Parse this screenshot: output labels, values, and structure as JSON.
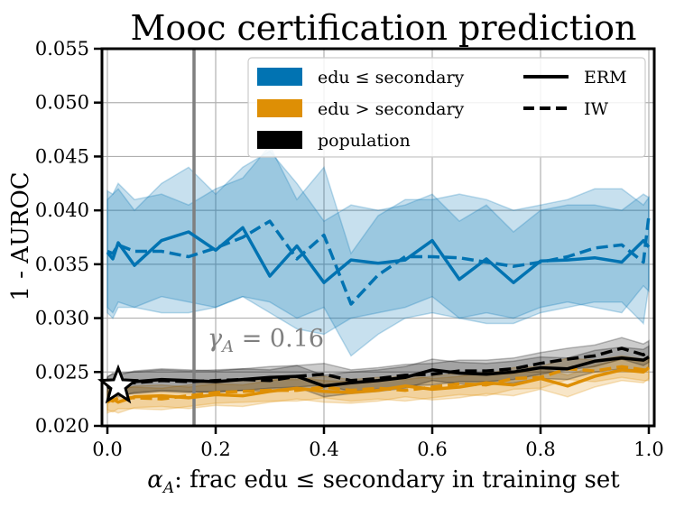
{
  "chart_data": {
    "type": "line",
    "title": "Mooc certification prediction",
    "xlabel": "α_A: frac edu ≤ secondary in training set",
    "xlabel_parts": {
      "alpha": "α",
      "sub": "A",
      "rest": ": frac edu ≤ secondary in training set"
    },
    "ylabel": "1 - AUROC",
    "xlim": [
      -0.01,
      1.01
    ],
    "ylim": [
      0.02,
      0.055
    ],
    "xticks": [
      0.0,
      0.2,
      0.4,
      0.6,
      0.8,
      1.0
    ],
    "xtick_labels": [
      "0.0",
      "0.2",
      "0.4",
      "0.6",
      "0.8",
      "1.0"
    ],
    "yticks": [
      0.02,
      0.025,
      0.03,
      0.035,
      0.04,
      0.045,
      0.05,
      0.055
    ],
    "ytick_labels": [
      "0.020",
      "0.025",
      "0.030",
      "0.035",
      "0.040",
      "0.045",
      "0.050",
      "0.055"
    ],
    "grid": true,
    "annotation": {
      "gamma_x": 0.16,
      "label_parts": {
        "gamma": "γ",
        "sub": "A",
        "rest": " = 0.16"
      }
    },
    "star_marker": {
      "x": 0.02,
      "y": 0.0237
    },
    "legend": {
      "placement": "top-right",
      "groups": [
        {
          "label": "edu ≤ secondary",
          "color": "#0173b2"
        },
        {
          "label": "edu > secondary",
          "color": "#de8f05"
        },
        {
          "label": "population",
          "color": "#000000"
        }
      ],
      "styles": [
        {
          "label": "ERM",
          "dash": "solid"
        },
        {
          "label": "IW",
          "dash": "dashed"
        }
      ]
    },
    "x": [
      0.0,
      0.01,
      0.02,
      0.05,
      0.1,
      0.15,
      0.2,
      0.25,
      0.3,
      0.35,
      0.4,
      0.45,
      0.5,
      0.55,
      0.6,
      0.65,
      0.7,
      0.75,
      0.8,
      0.85,
      0.9,
      0.95,
      0.99,
      1.0
    ],
    "series": [
      {
        "name": "edu ≤ secondary ERM",
        "group": "edu ≤ secondary",
        "color": "#0173b2",
        "dash": "solid",
        "values": [
          0.0361,
          0.0355,
          0.037,
          0.0349,
          0.0372,
          0.038,
          0.0363,
          0.0384,
          0.0339,
          0.0367,
          0.0333,
          0.0354,
          0.0351,
          0.0354,
          0.0372,
          0.0336,
          0.0355,
          0.0333,
          0.0353,
          0.0354,
          0.0356,
          0.0352,
          0.0372,
          0.0366
        ],
        "lower": [
          0.031,
          0.0305,
          0.0315,
          0.031,
          0.032,
          0.0315,
          0.031,
          0.032,
          0.0305,
          0.029,
          0.0285,
          0.03,
          0.0305,
          0.031,
          0.032,
          0.03,
          0.0305,
          0.03,
          0.031,
          0.0315,
          0.031,
          0.0305,
          0.033,
          0.0325
        ],
        "upper": [
          0.041,
          0.0415,
          0.042,
          0.04,
          0.0425,
          0.044,
          0.0415,
          0.044,
          0.0455,
          0.0425,
          0.039,
          0.0405,
          0.04,
          0.0405,
          0.0415,
          0.039,
          0.0405,
          0.038,
          0.04,
          0.0405,
          0.0405,
          0.04,
          0.0415,
          0.0412
        ]
      },
      {
        "name": "edu ≤ secondary IW",
        "group": "edu ≤ secondary",
        "color": "#0173b2",
        "dash": "dashed",
        "values": [
          0.0362,
          0.036,
          0.0368,
          0.0362,
          0.0362,
          0.0357,
          0.0365,
          0.0375,
          0.039,
          0.0355,
          0.0377,
          0.0313,
          0.034,
          0.0357,
          0.0357,
          0.0356,
          0.0352,
          0.0348,
          0.0352,
          0.0357,
          0.0365,
          0.0368,
          0.0352,
          0.0395
        ],
        "lower": [
          0.0305,
          0.03,
          0.031,
          0.031,
          0.0305,
          0.0305,
          0.031,
          0.032,
          0.0315,
          0.03,
          0.031,
          0.0265,
          0.0285,
          0.03,
          0.0305,
          0.03,
          0.0295,
          0.0295,
          0.0305,
          0.031,
          0.0315,
          0.0315,
          0.0295,
          0.033
        ],
        "upper": [
          0.0418,
          0.0415,
          0.0425,
          0.041,
          0.0415,
          0.0405,
          0.042,
          0.043,
          0.046,
          0.041,
          0.044,
          0.036,
          0.0395,
          0.041,
          0.041,
          0.0415,
          0.041,
          0.04,
          0.0405,
          0.041,
          0.042,
          0.042,
          0.0405,
          0.0412
        ]
      },
      {
        "name": "edu > secondary ERM",
        "group": "edu > secondary",
        "color": "#de8f05",
        "dash": "solid",
        "values": [
          0.0222,
          0.0225,
          0.0222,
          0.0227,
          0.0228,
          0.0226,
          0.0229,
          0.0228,
          0.0232,
          0.0235,
          0.0232,
          0.0231,
          0.0233,
          0.0237,
          0.0234,
          0.0236,
          0.024,
          0.0238,
          0.0244,
          0.0237,
          0.0246,
          0.0252,
          0.025,
          0.0254
        ],
        "lower": [
          0.0212,
          0.0214,
          0.0212,
          0.0217,
          0.0218,
          0.0216,
          0.0219,
          0.0218,
          0.0222,
          0.0225,
          0.0222,
          0.0221,
          0.0223,
          0.0227,
          0.0224,
          0.0226,
          0.023,
          0.0228,
          0.0234,
          0.0227,
          0.0236,
          0.0242,
          0.024,
          0.0244
        ],
        "upper": [
          0.0232,
          0.0236,
          0.0232,
          0.0237,
          0.0238,
          0.0236,
          0.0239,
          0.0238,
          0.0242,
          0.0245,
          0.0242,
          0.0241,
          0.0243,
          0.0247,
          0.0244,
          0.0246,
          0.025,
          0.0248,
          0.0254,
          0.0247,
          0.0256,
          0.0262,
          0.026,
          0.0264
        ]
      },
      {
        "name": "edu > secondary IW",
        "group": "edu > secondary",
        "color": "#de8f05",
        "dash": "dashed",
        "values": [
          0.0225,
          0.0223,
          0.0226,
          0.0226,
          0.0225,
          0.0228,
          0.0231,
          0.0232,
          0.0233,
          0.0233,
          0.0236,
          0.0233,
          0.0235,
          0.0233,
          0.0236,
          0.0239,
          0.0238,
          0.0244,
          0.0245,
          0.0253,
          0.0251,
          0.0255,
          0.0252,
          0.0252
        ],
        "lower": [
          0.0215,
          0.0213,
          0.0216,
          0.0216,
          0.0215,
          0.0218,
          0.0221,
          0.0222,
          0.0223,
          0.0223,
          0.0226,
          0.0223,
          0.0225,
          0.0223,
          0.0226,
          0.0229,
          0.0228,
          0.0234,
          0.0235,
          0.0243,
          0.0241,
          0.0245,
          0.0242,
          0.0242
        ],
        "upper": [
          0.0235,
          0.0233,
          0.0236,
          0.0236,
          0.0235,
          0.0238,
          0.0241,
          0.0242,
          0.0243,
          0.0243,
          0.0246,
          0.0243,
          0.0245,
          0.0243,
          0.0246,
          0.0249,
          0.0248,
          0.0254,
          0.0255,
          0.0263,
          0.0261,
          0.0265,
          0.0262,
          0.0262
        ]
      },
      {
        "name": "population ERM",
        "group": "population",
        "color": "#000000",
        "dash": "solid",
        "values": [
          0.0235,
          0.0239,
          0.0237,
          0.0241,
          0.0243,
          0.0242,
          0.0241,
          0.0243,
          0.0245,
          0.0246,
          0.0237,
          0.024,
          0.0242,
          0.0245,
          0.0252,
          0.0249,
          0.0248,
          0.025,
          0.0254,
          0.0253,
          0.026,
          0.0263,
          0.0261,
          0.0264
        ],
        "lower": [
          0.0225,
          0.0229,
          0.0227,
          0.0231,
          0.0233,
          0.0232,
          0.0231,
          0.0233,
          0.0235,
          0.0236,
          0.0227,
          0.023,
          0.0232,
          0.0235,
          0.0242,
          0.0239,
          0.0238,
          0.024,
          0.0244,
          0.0243,
          0.025,
          0.0253,
          0.0251,
          0.0254
        ],
        "upper": [
          0.0245,
          0.0249,
          0.0247,
          0.0251,
          0.0253,
          0.0252,
          0.0251,
          0.0253,
          0.0255,
          0.0256,
          0.0247,
          0.025,
          0.0252,
          0.0255,
          0.0262,
          0.0259,
          0.0258,
          0.026,
          0.0264,
          0.0263,
          0.027,
          0.0273,
          0.0271,
          0.0274
        ]
      },
      {
        "name": "population IW",
        "group": "population",
        "color": "#000000",
        "dash": "dashed",
        "values": [
          0.0236,
          0.0238,
          0.0239,
          0.024,
          0.0242,
          0.0241,
          0.0242,
          0.0243,
          0.0242,
          0.0246,
          0.0248,
          0.0242,
          0.0244,
          0.0247,
          0.0248,
          0.0251,
          0.0251,
          0.0253,
          0.0258,
          0.0262,
          0.0265,
          0.0272,
          0.0266,
          0.0269
        ],
        "lower": [
          0.0226,
          0.0228,
          0.0229,
          0.023,
          0.0232,
          0.0231,
          0.0232,
          0.0233,
          0.0232,
          0.0236,
          0.0238,
          0.0232,
          0.0234,
          0.0237,
          0.0238,
          0.0241,
          0.0241,
          0.0243,
          0.0248,
          0.0252,
          0.0255,
          0.0262,
          0.0256,
          0.0259
        ],
        "upper": [
          0.0246,
          0.0248,
          0.0249,
          0.025,
          0.0252,
          0.0251,
          0.0252,
          0.0253,
          0.0252,
          0.0256,
          0.0258,
          0.0252,
          0.0254,
          0.0257,
          0.0258,
          0.0261,
          0.0261,
          0.0263,
          0.0268,
          0.0272,
          0.0275,
          0.0282,
          0.0276,
          0.0279
        ]
      }
    ]
  }
}
